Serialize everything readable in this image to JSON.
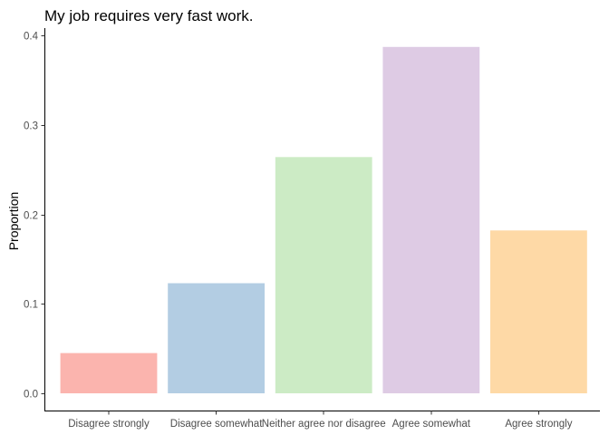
{
  "chart_data": {
    "type": "bar",
    "title": "My job requires very fast work.",
    "xlabel": "",
    "ylabel": "Proportion",
    "categories": [
      "Disagree strongly",
      "Disagree somewhat",
      "Neither agree nor disagree",
      "Agree somewhat",
      "Agree strongly"
    ],
    "values": [
      0.045,
      0.123,
      0.264,
      0.387,
      0.182
    ],
    "colors": [
      "#FBB4AE",
      "#B3CDE3",
      "#CCEBC5",
      "#DECBE4",
      "#FED9A6"
    ],
    "ylim": [
      0,
      0.4
    ],
    "yticks": [
      0,
      0.1,
      0.2,
      0.3,
      0.4
    ],
    "ytick_labels": [
      "0.0",
      "0.1",
      "0.2",
      "0.3",
      "0.4"
    ],
    "grid": false,
    "legend": "none"
  }
}
